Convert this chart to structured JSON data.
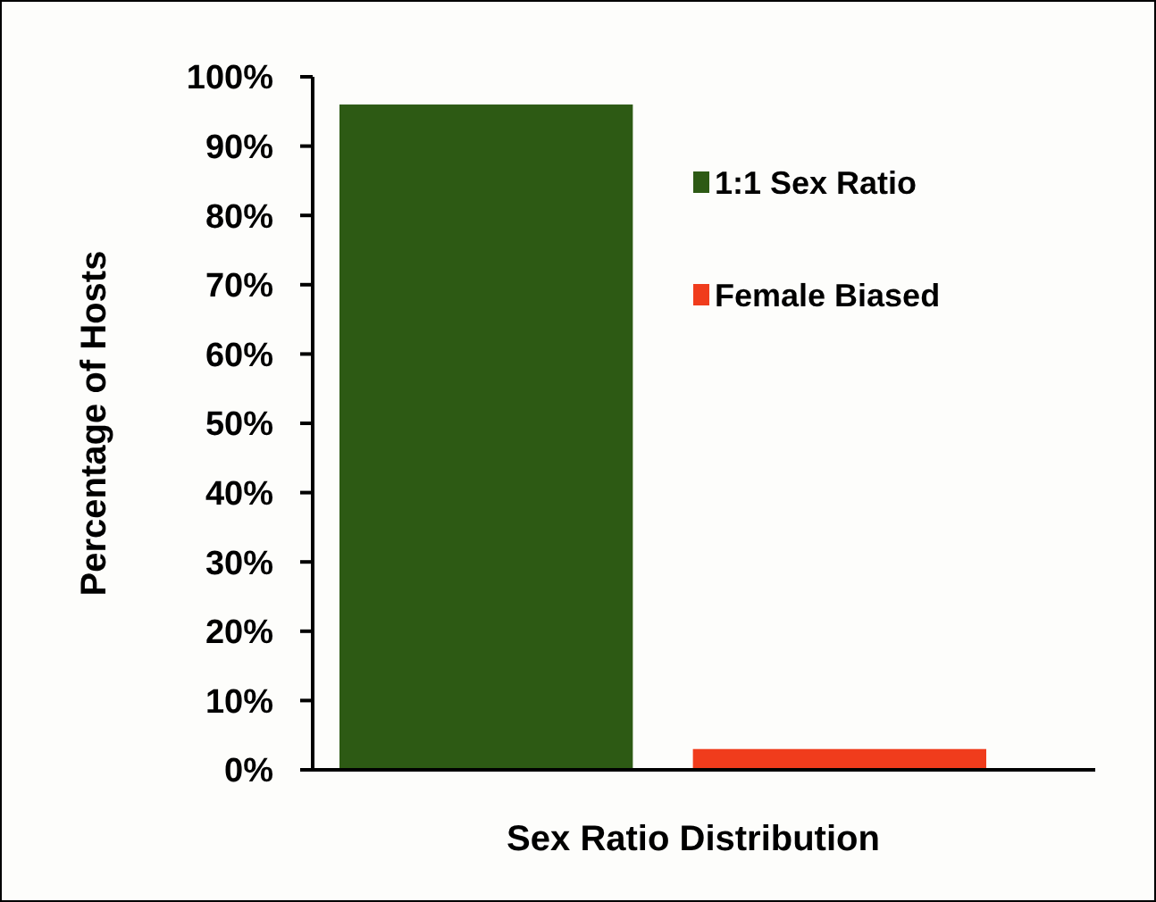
{
  "chart_data": {
    "type": "bar",
    "xlabel": "Sex Ratio Distribution",
    "ylabel": "Percentage of Hosts",
    "categories": [
      null,
      null
    ],
    "series": [
      {
        "name": "1:1 Sex Ratio",
        "color": "#2d5a14",
        "values": [
          96,
          null
        ]
      },
      {
        "name": "Female Biased",
        "color": "#f03c1c",
        "values": [
          null,
          3
        ]
      }
    ],
    "ylim": [
      0,
      100
    ],
    "yticks": [
      {
        "value": 0,
        "label": "0%"
      },
      {
        "value": 10,
        "label": "10%"
      },
      {
        "value": 20,
        "label": "20%"
      },
      {
        "value": 30,
        "label": "30%"
      },
      {
        "value": 40,
        "label": "40%"
      },
      {
        "value": 50,
        "label": "50%"
      },
      {
        "value": 60,
        "label": "60%"
      },
      {
        "value": 70,
        "label": "70%"
      },
      {
        "value": 80,
        "label": "80%"
      },
      {
        "value": 90,
        "label": "90%"
      },
      {
        "value": 100,
        "label": "100%"
      }
    ],
    "legend": "top right",
    "grid": false
  }
}
